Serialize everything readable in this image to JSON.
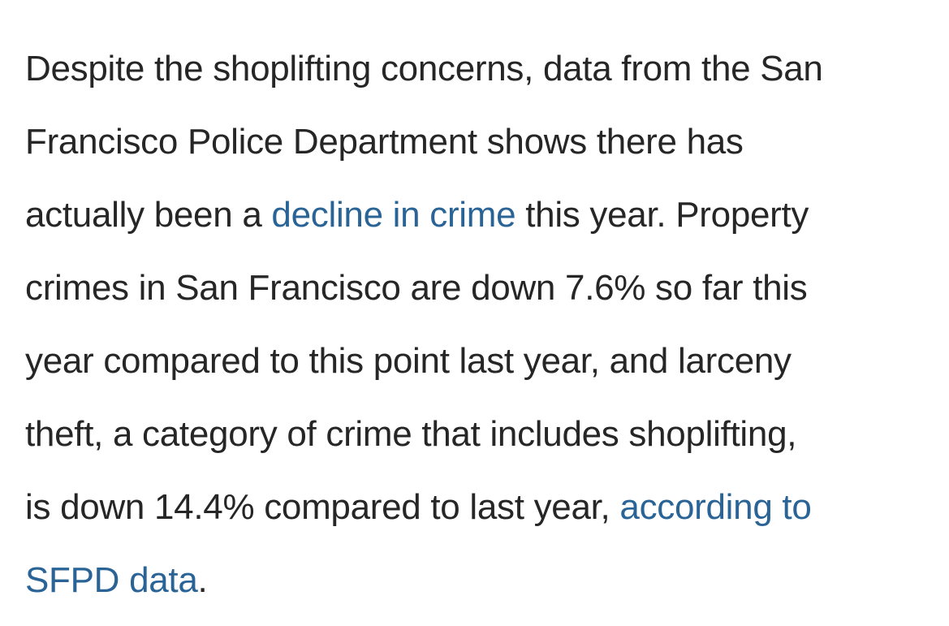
{
  "article": {
    "paragraph": {
      "segments": [
        {
          "type": "text",
          "text": "Despite the shoplifting concerns, data from the San"
        },
        {
          "type": "text",
          "text": "Francisco Police Department shows there has"
        },
        {
          "type": "text",
          "text": "actually been a "
        },
        {
          "type": "link",
          "text": "decline in crime"
        },
        {
          "type": "text",
          "text": " this year. Property"
        },
        {
          "type": "text",
          "text": "crimes in San Francisco are down 7.6% so far this"
        },
        {
          "type": "text",
          "text": "year compared to this point last year, and larceny"
        },
        {
          "type": "text",
          "text": "theft, a category of crime that includes shoplifting,"
        },
        {
          "type": "text",
          "text": "is down 14.4% compared to last year, "
        },
        {
          "type": "link",
          "text": "according to"
        },
        {
          "type": "link",
          "text": "SFPD data"
        },
        {
          "type": "text",
          "text": "."
        }
      ]
    }
  },
  "colors": {
    "text": "#262626",
    "link": "#2a6496",
    "background": "#ffffff"
  }
}
